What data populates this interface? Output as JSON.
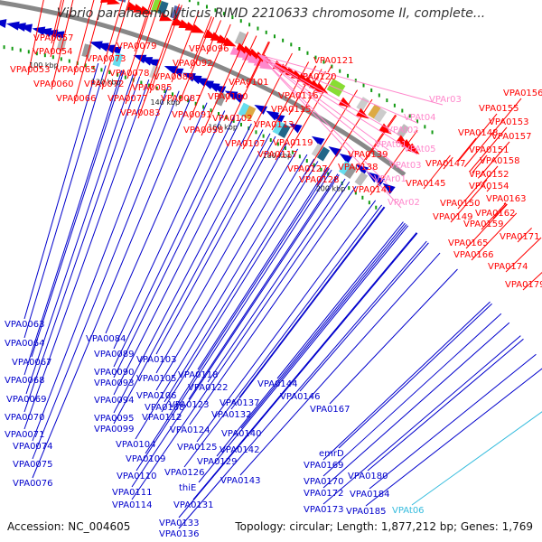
{
  "header": {
    "title": "Vibrio parahaemolyticus RIMD 2210633 chromosome II, complete..."
  },
  "footer": {
    "accession": "Accession: NC_004605",
    "summary": "Topology: circular; Length: 1,877,212 bp; Genes: 1,769"
  },
  "colors": {
    "forward": "#ff0000",
    "reverse": "#0000cc",
    "rna": "#ff88cc",
    "trna": "#33bbdd",
    "backbone": "#888888",
    "ticks": "#119911"
  },
  "scale_labels": [
    "60 kbp",
    "80 kbp",
    "100 kbp",
    "120 kbp",
    "140 kbp",
    "160 kbp",
    "180 kbp",
    "200 kbp"
  ],
  "top_genes": [
    "VPA0057",
    "VPA0054",
    "VPA0053",
    "VPA0065",
    "VPA0060",
    "VPA0066",
    "VPA0079",
    "VPA0073",
    "VPA0078",
    "VPA0072",
    "VPA0077",
    "VPA0083",
    "VPA0085",
    "VPA0096",
    "VPA0092",
    "VPA0088",
    "VPA0087",
    "VPA0091",
    "VPA0098",
    "VPA0101",
    "VPA0100",
    "VPA0102",
    "VPA0107",
    "VPA0121",
    "VPA0120",
    "VPA0116",
    "VPA0115",
    "VPA0113",
    "VPA0119",
    "VPA0117",
    "VPA0127",
    "VPA0128",
    "VPA0139",
    "VPA0138",
    "VPA0141",
    "VPA0145",
    "VPA0147",
    "VPA0148",
    "VPA0150",
    "VPA0149",
    "VPA0151",
    "VPA0152",
    "VPA0153",
    "VPA0154",
    "VPA0155",
    "VPA0156",
    "VPA0157",
    "VPA0158",
    "VPA0159",
    "VPA0162",
    "VPA0163",
    "VPA0165",
    "VPA0166",
    "VPA0171",
    "VPA0174",
    "VPA0179"
  ],
  "rna_genes": [
    "VPAr03",
    "VPAt04",
    "VPAt02",
    "VPAt01",
    "VPAt05",
    "VPAt03",
    "VPAr01",
    "VPAr02"
  ],
  "bottom_genes": [
    "VPA0063",
    "VPA0064",
    "VPA0067",
    "VPA0068",
    "VPA0069",
    "VPA0070",
    "VPA0071",
    "VPA0074",
    "VPA0075",
    "VPA0076",
    "VPA0084",
    "VPA0089",
    "VPA0090",
    "VPA0093",
    "VPA0094",
    "VPA0095",
    "VPA0099",
    "VPA0104",
    "VPA0109",
    "VPA0110",
    "VPA0111",
    "VPA0114",
    "VPA0103",
    "VPA0105",
    "VPA0106",
    "VPA0108",
    "VPA0112",
    "VPA0118",
    "VPA0122",
    "VPA0123",
    "VPA0124",
    "VPA0125",
    "VPA0126",
    "thiE",
    "VPA0131",
    "VPA0133",
    "VPA0136",
    "VPA0137",
    "VPA0132",
    "VPA0129",
    "VPA0140",
    "VPA0142",
    "VPA0143",
    "VPA0144",
    "VPA0146",
    "VPA0167",
    "emrD",
    "VPA0169",
    "VPA0170",
    "VPA0172",
    "VPA0173",
    "VPA0180",
    "VPA0184",
    "VPA0185",
    "VPAt06"
  ]
}
